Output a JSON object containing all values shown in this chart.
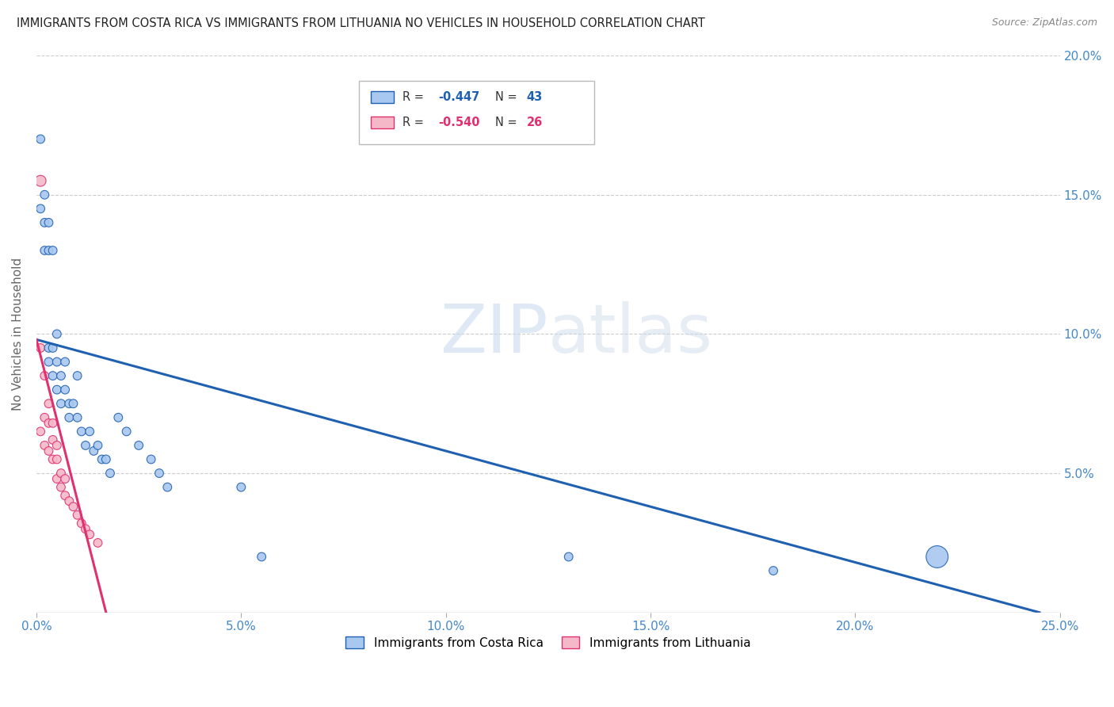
{
  "title": "IMMIGRANTS FROM COSTA RICA VS IMMIGRANTS FROM LITHUANIA NO VEHICLES IN HOUSEHOLD CORRELATION CHART",
  "source": "Source: ZipAtlas.com",
  "ylabel": "No Vehicles in Household",
  "ylabel_right_ticks": [
    "20.0%",
    "15.0%",
    "10.0%",
    "5.0%"
  ],
  "ylabel_right_values": [
    0.2,
    0.15,
    0.1,
    0.05
  ],
  "legend_label_cr": "Immigrants from Costa Rica",
  "legend_label_lith": "Immigrants from Lithuania",
  "color_cr": "#a8c8f0",
  "color_lith": "#f5b8c8",
  "color_cr_line": "#2060b0",
  "color_lith_line": "#e03070",
  "background_color": "#ffffff",
  "grid_color": "#cccccc",
  "title_color": "#222222",
  "axis_label_color": "#4488cc",
  "xlim": [
    0.0,
    0.25
  ],
  "ylim": [
    0.0,
    0.2
  ],
  "costa_rica_x": [
    0.001,
    0.001,
    0.002,
    0.002,
    0.002,
    0.003,
    0.003,
    0.003,
    0.003,
    0.004,
    0.004,
    0.004,
    0.005,
    0.005,
    0.005,
    0.006,
    0.006,
    0.007,
    0.007,
    0.008,
    0.008,
    0.009,
    0.01,
    0.01,
    0.011,
    0.012,
    0.013,
    0.014,
    0.015,
    0.016,
    0.017,
    0.018,
    0.02,
    0.022,
    0.025,
    0.028,
    0.03,
    0.032,
    0.05,
    0.055,
    0.13,
    0.18,
    0.22
  ],
  "costa_rica_y": [
    0.17,
    0.145,
    0.15,
    0.14,
    0.13,
    0.14,
    0.13,
    0.095,
    0.09,
    0.13,
    0.095,
    0.085,
    0.1,
    0.09,
    0.08,
    0.085,
    0.075,
    0.09,
    0.08,
    0.075,
    0.07,
    0.075,
    0.085,
    0.07,
    0.065,
    0.06,
    0.065,
    0.058,
    0.06,
    0.055,
    0.055,
    0.05,
    0.07,
    0.065,
    0.06,
    0.055,
    0.05,
    0.045,
    0.045,
    0.02,
    0.02,
    0.015,
    0.02
  ],
  "costa_rica_sizes": [
    60,
    60,
    60,
    60,
    60,
    60,
    60,
    60,
    60,
    60,
    60,
    60,
    60,
    60,
    60,
    60,
    60,
    60,
    60,
    60,
    60,
    60,
    60,
    60,
    60,
    60,
    60,
    60,
    60,
    60,
    60,
    60,
    60,
    60,
    60,
    60,
    60,
    60,
    60,
    60,
    60,
    60,
    400
  ],
  "lithuania_x": [
    0.001,
    0.001,
    0.001,
    0.002,
    0.002,
    0.002,
    0.003,
    0.003,
    0.003,
    0.004,
    0.004,
    0.004,
    0.005,
    0.005,
    0.005,
    0.006,
    0.006,
    0.007,
    0.007,
    0.008,
    0.009,
    0.01,
    0.011,
    0.012,
    0.013,
    0.015
  ],
  "lithuania_y": [
    0.155,
    0.095,
    0.065,
    0.085,
    0.07,
    0.06,
    0.075,
    0.068,
    0.058,
    0.068,
    0.062,
    0.055,
    0.06,
    0.055,
    0.048,
    0.05,
    0.045,
    0.048,
    0.042,
    0.04,
    0.038,
    0.035,
    0.032,
    0.03,
    0.028,
    0.025
  ],
  "lithuania_sizes": [
    100,
    60,
    60,
    60,
    60,
    60,
    60,
    60,
    60,
    60,
    60,
    60,
    60,
    60,
    60,
    60,
    60,
    60,
    60,
    60,
    60,
    60,
    60,
    60,
    60,
    60
  ],
  "cr_line_x0": 0.0,
  "cr_line_y0": 0.098,
  "cr_line_x1": 0.245,
  "cr_line_y1": 0.0,
  "lith_line_x0": 0.0,
  "lith_line_y0": 0.098,
  "lith_line_x1": 0.017,
  "lith_line_y1": 0.0,
  "watermark_zip_color": "#c5d8ef",
  "watermark_atlas_color": "#c5d8ef"
}
